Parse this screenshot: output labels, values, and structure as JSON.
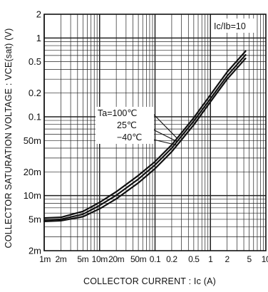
{
  "chart_data": {
    "type": "line",
    "scale": {
      "x": "log",
      "y": "log"
    },
    "xlim": [
      0.001,
      10
    ],
    "ylim": [
      0.002,
      2
    ],
    "grid": true,
    "xlabel": "COLLECTOR CURRENT : Ic (A)",
    "ylabel": "COLLECTOR SATURATION VOLTAGE : VCE(sat) (V)",
    "annotation": "Ic/Ib=10",
    "x_ticks": [
      0.001,
      0.002,
      0.005,
      0.01,
      0.02,
      0.05,
      0.1,
      0.2,
      0.5,
      1,
      2,
      5,
      10
    ],
    "x_tick_labels": [
      "1m",
      "2m",
      "5m",
      "10m",
      "20m",
      "50m",
      "0.1",
      "0.2",
      "0.5",
      "1",
      "2",
      "5",
      "10"
    ],
    "y_ticks": [
      0.002,
      0.005,
      0.01,
      0.02,
      0.05,
      0.1,
      0.2,
      0.5,
      1,
      2
    ],
    "y_tick_labels": [
      "2m",
      "5m",
      "10m",
      "20m",
      "50m",
      "0.1",
      "0.2",
      "0.5",
      "1",
      "2"
    ],
    "legend_labels": [
      "Ta=100℃",
      "25℃",
      "−40℃"
    ],
    "series": [
      {
        "name": "Ta=100℃",
        "x": [
          0.001,
          0.002,
          0.005,
          0.01,
          0.02,
          0.05,
          0.1,
          0.2,
          0.5,
          1,
          2,
          4.3
        ],
        "y": [
          0.0052,
          0.0053,
          0.0063,
          0.0082,
          0.0112,
          0.018,
          0.027,
          0.044,
          0.097,
          0.19,
          0.37,
          0.68
        ]
      },
      {
        "name": "25℃",
        "x": [
          0.001,
          0.002,
          0.005,
          0.01,
          0.02,
          0.05,
          0.1,
          0.2,
          0.5,
          1,
          2,
          4.3
        ],
        "y": [
          0.0049,
          0.005,
          0.0058,
          0.0075,
          0.0101,
          0.0162,
          0.0245,
          0.04,
          0.088,
          0.17,
          0.33,
          0.61
        ]
      },
      {
        "name": "−40℃",
        "x": [
          0.001,
          0.002,
          0.005,
          0.01,
          0.02,
          0.05,
          0.1,
          0.2,
          0.5,
          1,
          2,
          4.3
        ],
        "y": [
          0.0047,
          0.0048,
          0.0054,
          0.0068,
          0.0091,
          0.0145,
          0.022,
          0.036,
          0.079,
          0.155,
          0.3,
          0.55
        ]
      }
    ]
  }
}
